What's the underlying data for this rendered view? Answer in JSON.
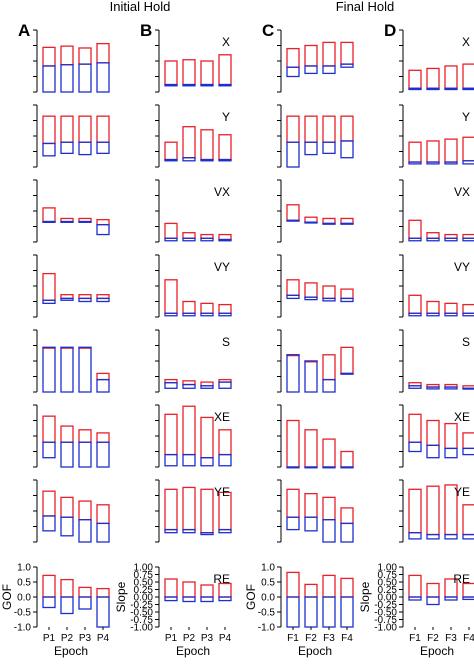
{
  "headers": {
    "initial": "Initial Hold",
    "final": "Final Hold"
  },
  "panel_letters": [
    "A",
    "B",
    "C",
    "D"
  ],
  "variables": [
    "X",
    "Y",
    "VX",
    "VY",
    "S",
    "XE",
    "YE",
    "RE"
  ],
  "colors": {
    "gof": "#e8202a",
    "slope": "#1d2fd0",
    "axis": "#000000"
  },
  "chart_data": [
    {
      "type": "bar",
      "title": "Initial Hold",
      "panel": "A",
      "xlabel": "Epoch",
      "ylabel": "GOF",
      "categories": [
        "P1",
        "P2",
        "P3",
        "P4"
      ],
      "ylim": [
        -1.0,
        1.0
      ],
      "yticks": [
        "-1.0",
        "-0.5",
        "0.0",
        "0.5",
        "1.0"
      ],
      "rows": [
        {
          "row": 1,
          "top": [
            0.72,
            0.74,
            0.71,
            0.78
          ],
          "mid": [
            0.42,
            0.44,
            0.45,
            0.47
          ],
          "bot": [
            0.0,
            0.0,
            0.0,
            0.0
          ]
        },
        {
          "row": 2,
          "top": [
            0.82,
            0.82,
            0.82,
            0.82
          ],
          "mid": [
            0.38,
            0.4,
            0.4,
            0.4
          ],
          "bot": [
            0.18,
            0.22,
            0.2,
            0.22
          ]
        },
        {
          "row": 3,
          "top": [
            0.55,
            0.38,
            0.38,
            0.36
          ],
          "mid": [
            0.33,
            0.33,
            0.33,
            0.28
          ],
          "bot": [
            0.33,
            0.33,
            0.33,
            0.12
          ]
        },
        {
          "row": 4,
          "top": [
            0.7,
            0.36,
            0.36,
            0.36
          ],
          "mid": [
            0.27,
            0.3,
            0.3,
            0.3
          ],
          "bot": [
            0.22,
            0.27,
            0.25,
            0.25
          ]
        },
        {
          "row": 5,
          "top": [
            0.72,
            0.72,
            0.72,
            0.3
          ],
          "mid": [
            0.72,
            0.72,
            0.72,
            0.2
          ],
          "bot": [
            0.0,
            0.0,
            0.0,
            0.0
          ]
        },
        {
          "row": 6,
          "top": [
            0.82,
            0.66,
            0.6,
            0.55
          ],
          "mid": [
            0.4,
            0.4,
            0.4,
            0.4
          ],
          "bot": [
            0.15,
            0.0,
            0.0,
            0.0
          ]
        },
        {
          "row": 7,
          "top": [
            0.82,
            0.72,
            0.66,
            0.6
          ],
          "mid": [
            0.42,
            0.4,
            0.36,
            0.3
          ],
          "bot": [
            0.18,
            0.1,
            0.0,
            0.0
          ]
        },
        {
          "row": 8,
          "top": [
            0.72,
            0.58,
            0.32,
            0.28
          ],
          "mid": [
            0.0,
            0.0,
            0.0,
            0.0
          ],
          "bot": [
            -0.35,
            -0.55,
            -0.4,
            -1.0
          ]
        }
      ]
    },
    {
      "type": "bar",
      "panel": "B",
      "xlabel": "Epoch",
      "ylabel": "Slope",
      "categories": [
        "P1",
        "P2",
        "P3",
        "P4"
      ],
      "ylim": [
        -1.0,
        1.0
      ],
      "yticks": [
        "-1.00",
        "-0.75",
        "-0.50",
        "-0.25",
        "0.00",
        "0.25",
        "0.50",
        "0.75",
        "1.00"
      ],
      "rows": [
        {
          "row": 1,
          "top": [
            0.5,
            0.52,
            0.5,
            0.6
          ],
          "mid": [
            0.12,
            0.12,
            0.12,
            0.12
          ],
          "bot": [
            0.1,
            0.1,
            0.1,
            0.1
          ]
        },
        {
          "row": 2,
          "top": [
            0.4,
            0.65,
            0.6,
            0.52
          ],
          "mid": [
            0.12,
            0.15,
            0.12,
            0.12
          ],
          "bot": [
            0.1,
            0.1,
            0.1,
            0.1
          ]
        },
        {
          "row": 3,
          "top": [
            0.3,
            0.15,
            0.12,
            0.12
          ],
          "mid": [
            0.06,
            0.06,
            0.06,
            0.04
          ],
          "bot": [
            0.02,
            0.02,
            0.02,
            0.02
          ]
        },
        {
          "row": 4,
          "top": [
            0.6,
            0.25,
            0.22,
            0.2
          ],
          "mid": [
            0.06,
            0.06,
            0.06,
            0.06
          ],
          "bot": [
            0.02,
            0.02,
            0.02,
            0.02
          ]
        },
        {
          "row": 5,
          "top": [
            0.2,
            0.18,
            0.16,
            0.2
          ],
          "mid": [
            0.15,
            0.12,
            0.1,
            0.16
          ],
          "bot": [
            0.06,
            0.06,
            0.06,
            0.06
          ]
        },
        {
          "row": 6,
          "top": [
            0.85,
            0.98,
            0.8,
            0.6
          ],
          "mid": [
            0.2,
            0.2,
            0.15,
            0.2
          ],
          "bot": [
            0.02,
            0.02,
            0.02,
            0.02
          ]
        },
        {
          "row": 7,
          "top": [
            0.85,
            0.88,
            0.85,
            0.8
          ],
          "mid": [
            0.2,
            0.2,
            0.15,
            0.2
          ],
          "bot": [
            0.15,
            0.15,
            0.12,
            0.15
          ]
        },
        {
          "row": 8,
          "top": [
            0.6,
            0.5,
            0.4,
            0.45
          ],
          "mid": [
            0.0,
            0.0,
            0.0,
            0.0
          ],
          "bot": [
            -0.12,
            -0.15,
            -0.15,
            -0.12
          ]
        }
      ]
    },
    {
      "type": "bar",
      "title": "Final Hold",
      "panel": "C",
      "xlabel": "Epoch",
      "ylabel": "GOF",
      "categories": [
        "F1",
        "F2",
        "F3",
        "F4"
      ],
      "ylim": [
        -1.0,
        1.0
      ],
      "yticks": [
        "-1.0",
        "-0.5",
        "0.0",
        "0.5",
        "1.0"
      ],
      "rows": [
        {
          "row": 1,
          "top": [
            0.7,
            0.75,
            0.8,
            0.8
          ],
          "mid": [
            0.4,
            0.42,
            0.42,
            0.45
          ],
          "bot": [
            0.25,
            0.3,
            0.3,
            0.4
          ]
        },
        {
          "row": 2,
          "top": [
            0.82,
            0.82,
            0.82,
            0.82
          ],
          "mid": [
            0.4,
            0.4,
            0.4,
            0.42
          ],
          "bot": [
            0.0,
            0.2,
            0.22,
            0.15
          ]
        },
        {
          "row": 3,
          "top": [
            0.6,
            0.4,
            0.38,
            0.38
          ],
          "mid": [
            0.35,
            0.32,
            0.3,
            0.3
          ],
          "bot": [
            0.35,
            0.32,
            0.3,
            0.3
          ]
        },
        {
          "row": 4,
          "top": [
            0.6,
            0.55,
            0.5,
            0.45
          ],
          "mid": [
            0.35,
            0.32,
            0.3,
            0.3
          ],
          "bot": [
            0.3,
            0.28,
            0.26,
            0.25
          ]
        },
        {
          "row": 5,
          "top": [
            0.6,
            0.5,
            0.6,
            0.72
          ],
          "mid": [
            0.6,
            0.5,
            0.2,
            0.3
          ],
          "bot": [
            0.0,
            0.0,
            0.0,
            0.3
          ]
        },
        {
          "row": 6,
          "top": [
            0.75,
            0.6,
            0.45,
            0.25
          ],
          "mid": [
            0.0,
            0.0,
            0.0,
            0.0
          ],
          "bot": [
            0.0,
            0.0,
            0.0,
            0.0
          ]
        },
        {
          "row": 7,
          "top": [
            0.85,
            0.78,
            0.72,
            0.55
          ],
          "mid": [
            0.4,
            0.4,
            0.36,
            0.3
          ],
          "bot": [
            0.2,
            0.18,
            0.0,
            0.0
          ]
        },
        {
          "row": 8,
          "top": [
            0.82,
            0.42,
            0.72,
            0.62
          ],
          "mid": [
            0.0,
            0.0,
            0.0,
            0.0
          ],
          "bot": [
            -1.0,
            -1.0,
            -1.0,
            -1.0
          ]
        }
      ]
    },
    {
      "type": "bar",
      "panel": "D",
      "xlabel": "Epoch",
      "ylabel": "Slope",
      "categories": [
        "F1",
        "F2",
        "F3",
        "F4"
      ],
      "ylim": [
        -1.0,
        1.0
      ],
      "yticks": [
        "-1.00",
        "-0.75",
        "-0.50",
        "-0.25",
        "0.00",
        "0.25",
        "0.50",
        "0.75",
        "1.00"
      ],
      "rows": [
        {
          "row": 1,
          "top": [
            0.35,
            0.38,
            0.42,
            0.45
          ],
          "mid": [
            0.06,
            0.06,
            0.06,
            0.06
          ],
          "bot": [
            0.04,
            0.04,
            0.04,
            0.04
          ]
        },
        {
          "row": 2,
          "top": [
            0.4,
            0.42,
            0.45,
            0.48
          ],
          "mid": [
            0.08,
            0.08,
            0.08,
            0.1
          ],
          "bot": [
            0.05,
            0.05,
            0.05,
            0.05
          ]
        },
        {
          "row": 3,
          "top": [
            0.35,
            0.15,
            0.12,
            0.12
          ],
          "mid": [
            0.06,
            0.06,
            0.06,
            0.06
          ],
          "bot": [
            0.02,
            0.02,
            0.02,
            0.02
          ]
        },
        {
          "row": 4,
          "top": [
            0.35,
            0.25,
            0.22,
            0.2
          ],
          "mid": [
            0.06,
            0.06,
            0.06,
            0.06
          ],
          "bot": [
            0.02,
            0.02,
            0.02,
            0.02
          ]
        },
        {
          "row": 5,
          "top": [
            0.15,
            0.12,
            0.12,
            0.1
          ],
          "mid": [
            0.1,
            0.08,
            0.08,
            0.06
          ],
          "bot": [
            0.06,
            0.05,
            0.05,
            0.05
          ]
        },
        {
          "row": 6,
          "top": [
            0.85,
            0.75,
            0.7,
            0.55
          ],
          "mid": [
            0.4,
            0.35,
            0.3,
            0.3
          ],
          "bot": [
            0.25,
            0.15,
            0.15,
            0.2
          ]
        },
        {
          "row": 7,
          "top": [
            0.85,
            0.9,
            0.92,
            0.6
          ],
          "mid": [
            0.15,
            0.12,
            0.12,
            0.12
          ],
          "bot": [
            0.05,
            0.05,
            0.05,
            0.05
          ]
        },
        {
          "row": 8,
          "top": [
            0.72,
            0.45,
            0.6,
            0.45
          ],
          "mid": [
            0.0,
            0.0,
            0.0,
            0.0
          ],
          "bot": [
            -0.1,
            -0.25,
            -0.1,
            -0.08
          ]
        }
      ]
    }
  ]
}
